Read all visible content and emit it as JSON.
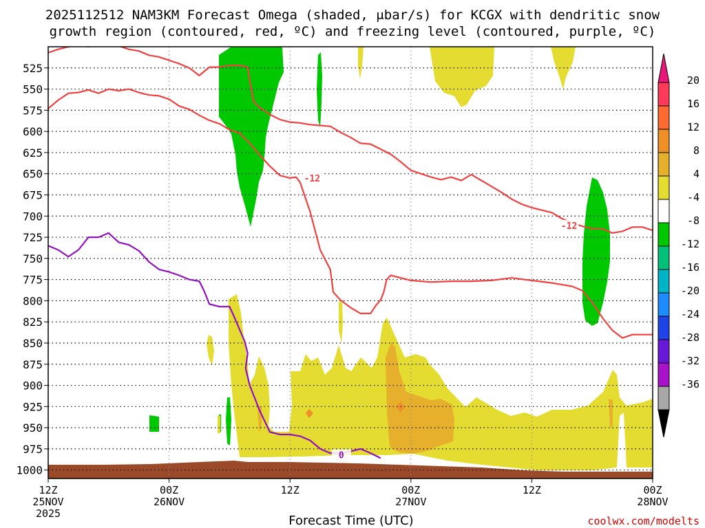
{
  "chart_data": {
    "type": "time-height cross-section",
    "title_line1": "2025112512 NAM3KM Forecast Omega (shaded, μbar/s) for KCGX with dendritic snow",
    "title_line2": "growth region (contoured, red, ºC) and freezing level (contoured, purple, ºC)",
    "xlabel": "Forecast Time (UTC)",
    "credit": "coolwx.com/modelts",
    "x_range_hours": [
      0,
      60
    ],
    "y_range_hpa": [
      500,
      1010
    ],
    "y_ticks": [
      525,
      550,
      575,
      600,
      625,
      650,
      675,
      700,
      725,
      750,
      775,
      800,
      825,
      850,
      875,
      900,
      925,
      950,
      975,
      1000
    ],
    "x_ticks": [
      {
        "hour": 0,
        "lines": [
          "12Z",
          "25NOV",
          "2025"
        ]
      },
      {
        "hour": 12,
        "lines": [
          "00Z",
          "26NOV"
        ]
      },
      {
        "hour": 24,
        "lines": [
          "12Z"
        ]
      },
      {
        "hour": 36,
        "lines": [
          "00Z",
          "27NOV"
        ]
      },
      {
        "hour": 48,
        "lines": [
          "12Z"
        ]
      },
      {
        "hour": 60,
        "lines": [
          "00Z",
          "28NOV"
        ]
      }
    ],
    "colorbar": {
      "labels": [
        "20",
        "16",
        "12",
        "8",
        "4",
        "-4",
        "-8",
        "-12",
        "-16",
        "-20",
        "-24",
        "-28",
        "-32",
        "-36"
      ],
      "colors": [
        "#ff3a5a",
        "#ff6a30",
        "#ee8f28",
        "#e6b02c",
        "#e4dc30",
        "#ffffff",
        "#00c800",
        "#00c07a",
        "#00b4c8",
        "#1e8cff",
        "#1e44e8",
        "#6a18d8",
        "#a812c8",
        "#a8a8a8"
      ],
      "top_arrow_color": "#e8187a",
      "bottom_arrow_color": "#000000"
    },
    "series": [
      {
        "name": "-12",
        "color": "#f04040",
        "label": "-12",
        "points": [
          [
            0,
            573
          ],
          [
            1,
            563
          ],
          [
            2,
            555
          ],
          [
            3,
            554
          ],
          [
            4,
            551
          ],
          [
            5,
            555
          ],
          [
            6,
            550
          ],
          [
            7,
            552
          ],
          [
            8,
            550
          ],
          [
            9,
            554
          ],
          [
            10,
            557
          ],
          [
            11,
            558
          ],
          [
            12,
            562
          ],
          [
            13,
            570
          ],
          [
            14,
            574
          ],
          [
            15,
            581
          ],
          [
            16,
            587
          ],
          [
            17,
            591
          ],
          [
            18,
            598
          ],
          [
            19,
            602
          ],
          [
            20,
            614
          ],
          [
            21,
            628
          ],
          [
            22,
            641
          ],
          [
            23,
            652
          ],
          [
            24,
            655
          ],
          [
            24.6,
            654
          ],
          [
            25,
            660
          ],
          [
            26,
            695
          ],
          [
            27,
            740
          ],
          [
            28,
            763
          ],
          [
            28.3,
            790
          ],
          [
            29,
            799
          ],
          [
            30,
            808
          ],
          [
            31,
            815
          ],
          [
            32,
            815
          ],
          [
            32.5,
            806
          ],
          [
            33,
            799
          ],
          [
            33.3,
            790
          ],
          [
            33.6,
            775
          ],
          [
            34,
            770
          ],
          [
            36,
            776
          ],
          [
            38,
            778
          ],
          [
            40,
            777
          ],
          [
            42,
            777
          ],
          [
            44,
            776
          ],
          [
            46,
            773
          ],
          [
            48,
            776
          ],
          [
            50,
            779
          ],
          [
            52,
            783
          ],
          [
            53,
            788
          ],
          [
            54,
            802
          ],
          [
            55,
            820
          ],
          [
            56,
            835
          ],
          [
            57,
            844
          ],
          [
            58,
            840
          ],
          [
            59,
            840
          ],
          [
            60,
            840
          ]
        ],
        "label_at_hour": 26.2,
        "label_at_hpa": 655
      },
      {
        "name": "-12 upper",
        "color": "#f04040",
        "label": "-12",
        "points": [
          [
            0,
            507
          ],
          [
            1,
            503
          ],
          [
            2,
            500
          ],
          [
            3,
            498
          ],
          [
            4,
            500
          ],
          [
            5,
            496
          ],
          [
            6,
            498
          ],
          [
            7,
            499
          ],
          [
            8,
            503
          ],
          [
            9,
            505
          ],
          [
            10,
            510
          ],
          [
            11,
            512
          ],
          [
            12,
            516
          ],
          [
            13,
            520
          ],
          [
            14,
            525
          ],
          [
            15,
            534
          ],
          [
            16,
            524
          ],
          [
            17,
            524
          ],
          [
            18,
            522
          ],
          [
            19,
            522
          ],
          [
            19.8,
            524
          ],
          [
            20,
            540
          ],
          [
            20.4,
            565
          ],
          [
            21,
            572
          ],
          [
            22,
            580
          ],
          [
            23,
            586
          ],
          [
            24,
            589
          ],
          [
            25,
            590
          ],
          [
            26,
            592
          ],
          [
            27,
            593
          ],
          [
            28,
            594
          ],
          [
            29,
            601
          ],
          [
            30,
            607
          ],
          [
            31,
            614
          ],
          [
            32,
            615
          ],
          [
            33,
            621
          ],
          [
            34,
            627
          ],
          [
            35,
            636
          ],
          [
            36,
            646
          ],
          [
            37,
            650
          ],
          [
            38,
            654
          ],
          [
            39,
            657
          ],
          [
            40,
            654
          ],
          [
            41,
            658
          ],
          [
            42,
            651
          ],
          [
            43,
            658
          ],
          [
            44,
            665
          ],
          [
            45,
            672
          ],
          [
            46,
            680
          ],
          [
            47,
            686
          ],
          [
            48,
            690
          ],
          [
            49,
            693
          ],
          [
            50,
            696
          ],
          [
            51,
            703
          ],
          [
            52,
            708
          ],
          [
            53,
            712
          ],
          [
            54,
            715
          ],
          [
            55,
            715
          ],
          [
            56,
            720
          ],
          [
            57,
            718
          ],
          [
            58,
            713
          ],
          [
            59,
            713
          ],
          [
            60,
            717
          ]
        ],
        "label_at_hour": 51.7,
        "label_at_hpa": 711
      },
      {
        "name": "0",
        "color": "#9010c0",
        "label": "0",
        "points": [
          [
            0,
            735
          ],
          [
            1,
            740
          ],
          [
            2,
            748
          ],
          [
            3,
            740
          ],
          [
            4,
            725
          ],
          [
            5,
            725
          ],
          [
            6,
            720
          ],
          [
            7,
            731
          ],
          [
            8,
            734
          ],
          [
            9,
            741
          ],
          [
            10,
            754
          ],
          [
            11,
            763
          ],
          [
            12,
            766
          ],
          [
            13,
            770
          ],
          [
            14,
            775
          ],
          [
            15,
            777
          ],
          [
            15.5,
            789
          ],
          [
            16,
            804
          ],
          [
            17,
            807
          ],
          [
            18,
            807
          ],
          [
            18.5,
            820
          ],
          [
            19,
            834
          ],
          [
            19.5,
            848
          ],
          [
            19.8,
            862
          ],
          [
            19.6,
            880
          ],
          [
            20,
            900
          ],
          [
            21,
            930
          ],
          [
            22,
            955
          ],
          [
            23,
            958
          ],
          [
            24,
            958
          ],
          [
            25,
            960
          ],
          [
            26,
            965
          ],
          [
            27,
            975
          ],
          [
            28,
            980
          ],
          [
            29,
            980
          ],
          [
            30,
            978
          ],
          [
            31,
            975
          ],
          [
            32,
            980
          ],
          [
            33,
            986
          ]
        ],
        "label_at_hour": 29.1,
        "label_at_hpa": 982
      }
    ],
    "shaded_regions": [
      {
        "name": "omega 4 to 8",
        "color": "#e4dc30"
      },
      {
        "name": "omega 8 to 12",
        "color": "#e6b02c"
      },
      {
        "name": "omega 12 to 16",
        "color": "#ee8f28"
      },
      {
        "name": "omega -4 to -8",
        "color": "#00c800"
      }
    ],
    "terrain_color": "#9a4a28",
    "grid": true
  }
}
